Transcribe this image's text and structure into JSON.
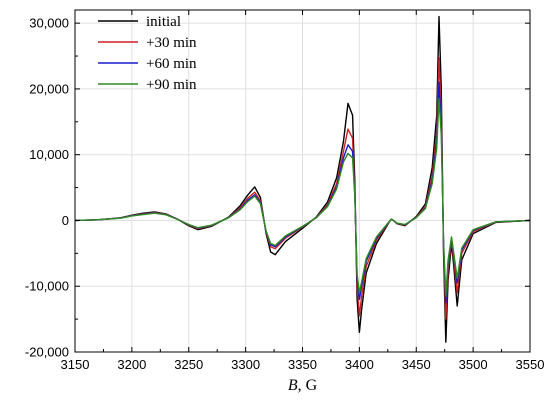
{
  "chart_data": {
    "type": "line",
    "xlabel_italic": "B",
    "xlabel_rest": ", G",
    "ylabel": "",
    "xlim": [
      3150,
      3550
    ],
    "ylim": [
      -20000,
      32000
    ],
    "x_ticks": [
      3150,
      3200,
      3250,
      3300,
      3350,
      3400,
      3450,
      3500,
      3550
    ],
    "y_ticks": [
      -20000,
      -10000,
      0,
      10000,
      20000,
      30000
    ],
    "x_tick_labels": [
      "3150",
      "3200",
      "3250",
      "3300",
      "3350",
      "3400",
      "3450",
      "3500",
      "3550"
    ],
    "y_tick_labels": [
      "-20,000",
      "-10,000",
      "0",
      "10,000",
      "20,000",
      "30,000"
    ],
    "grid": true,
    "legend_position": "top-left",
    "series": [
      {
        "name": "initial",
        "color": "#000000",
        "x": [
          3150,
          3170,
          3190,
          3200,
          3210,
          3220,
          3230,
          3240,
          3250,
          3258,
          3270,
          3285,
          3295,
          3302,
          3308,
          3313,
          3318,
          3322,
          3326,
          3335,
          3350,
          3362,
          3372,
          3380,
          3386,
          3390,
          3394,
          3396,
          3398,
          3400,
          3402,
          3406,
          3415,
          3425,
          3428,
          3430,
          3433,
          3440,
          3450,
          3458,
          3464,
          3468,
          3470,
          3472,
          3474,
          3476,
          3478,
          3481,
          3483,
          3486,
          3490,
          3500,
          3520,
          3550
        ],
        "y": [
          0,
          100,
          400,
          800,
          1100,
          1300,
          1000,
          200,
          -800,
          -1400,
          -900,
          500,
          2200,
          3900,
          5100,
          3500,
          -2000,
          -4800,
          -5200,
          -3200,
          -1200,
          500,
          2800,
          6500,
          12000,
          17800,
          16000,
          6000,
          -12000,
          -17000,
          -13500,
          -8000,
          -3500,
          -600,
          200,
          0,
          -500,
          -800,
          600,
          2500,
          8000,
          16000,
          31000,
          20000,
          -5000,
          -18500,
          -9000,
          -3500,
          -7000,
          -13000,
          -6000,
          -2000,
          -300,
          0
        ]
      },
      {
        "name": "+30 min",
        "color": "#cc2222",
        "x": [
          3150,
          3170,
          3190,
          3200,
          3210,
          3220,
          3230,
          3240,
          3250,
          3258,
          3270,
          3285,
          3295,
          3302,
          3308,
          3313,
          3318,
          3322,
          3326,
          3335,
          3350,
          3362,
          3372,
          3380,
          3386,
          3390,
          3394,
          3396,
          3398,
          3400,
          3402,
          3406,
          3415,
          3425,
          3428,
          3430,
          3433,
          3440,
          3450,
          3458,
          3464,
          3468,
          3470,
          3472,
          3474,
          3476,
          3478,
          3481,
          3483,
          3486,
          3490,
          3500,
          3520,
          3550
        ],
        "y": [
          0,
          100,
          380,
          750,
          1000,
          1200,
          950,
          200,
          -700,
          -1250,
          -800,
          450,
          1900,
          3400,
          4300,
          3000,
          -1800,
          -4000,
          -4300,
          -2700,
          -1000,
          450,
          2400,
          5600,
          10500,
          13900,
          12500,
          4500,
          -10000,
          -14500,
          -11500,
          -7000,
          -3000,
          -500,
          180,
          0,
          -450,
          -700,
          500,
          2100,
          6700,
          13500,
          24700,
          16500,
          -4000,
          -15000,
          -7500,
          -3000,
          -6000,
          -11000,
          -5000,
          -1700,
          -250,
          0
        ]
      },
      {
        "name": "+60 min",
        "color": "#1a1acc",
        "x": [
          3150,
          3170,
          3190,
          3200,
          3210,
          3220,
          3230,
          3240,
          3250,
          3258,
          3270,
          3285,
          3295,
          3302,
          3308,
          3313,
          3318,
          3322,
          3326,
          3335,
          3350,
          3362,
          3372,
          3380,
          3386,
          3390,
          3394,
          3396,
          3398,
          3400,
          3402,
          3406,
          3415,
          3425,
          3428,
          3430,
          3433,
          3440,
          3450,
          3458,
          3464,
          3468,
          3470,
          3472,
          3474,
          3476,
          3478,
          3481,
          3483,
          3486,
          3490,
          3500,
          3520,
          3550
        ],
        "y": [
          0,
          100,
          360,
          720,
          950,
          1150,
          900,
          180,
          -650,
          -1150,
          -750,
          420,
          1700,
          3100,
          3900,
          2700,
          -1700,
          -3700,
          -4000,
          -2500,
          -950,
          420,
          2200,
          5100,
          9500,
          11500,
          10500,
          4000,
          -8800,
          -12000,
          -10000,
          -6200,
          -2700,
          -450,
          160,
          0,
          -420,
          -650,
          450,
          1900,
          6000,
          12000,
          21000,
          14500,
          -3500,
          -12500,
          -6500,
          -2700,
          -5300,
          -9500,
          -4500,
          -1500,
          -220,
          0
        ]
      },
      {
        "name": "+90 min",
        "color": "#2e8b1e",
        "x": [
          3150,
          3170,
          3190,
          3200,
          3210,
          3220,
          3230,
          3240,
          3250,
          3258,
          3270,
          3285,
          3295,
          3302,
          3308,
          3313,
          3318,
          3322,
          3326,
          3335,
          3350,
          3362,
          3372,
          3380,
          3386,
          3390,
          3394,
          3396,
          3398,
          3400,
          3402,
          3406,
          3415,
          3425,
          3428,
          3430,
          3433,
          3440,
          3450,
          3458,
          3464,
          3468,
          3470,
          3472,
          3474,
          3476,
          3478,
          3481,
          3483,
          3486,
          3490,
          3500,
          3520,
          3550
        ],
        "y": [
          0,
          100,
          340,
          680,
          900,
          1100,
          860,
          170,
          -620,
          -1100,
          -720,
          400,
          1600,
          2900,
          3700,
          2550,
          -1600,
          -3500,
          -3800,
          -2350,
          -900,
          400,
          2100,
          4800,
          8900,
          10200,
          9500,
          3700,
          -8200,
          -11000,
          -9300,
          -5800,
          -2500,
          -420,
          150,
          0,
          -400,
          -620,
          430,
          1800,
          5600,
          11000,
          18500,
          13000,
          -3200,
          -11500,
          -6000,
          -2500,
          -5000,
          -8800,
          -4200,
          -1400,
          -200,
          0
        ]
      }
    ]
  }
}
